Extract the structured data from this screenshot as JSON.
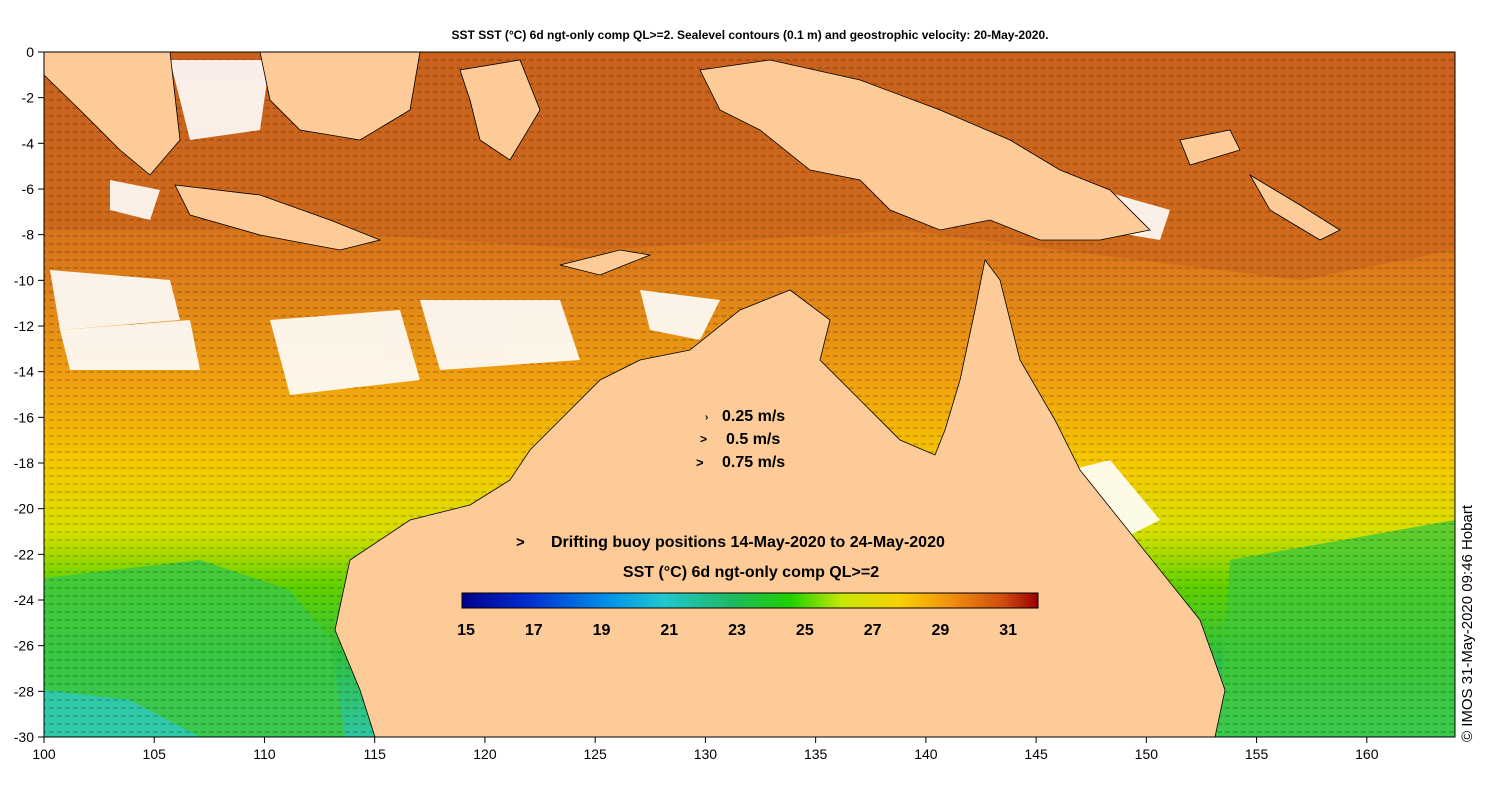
{
  "title": "SST SST (°C) 6d ngt-only comp QL>=2. Sealevel contours (0.1 m) and geostrophic velocity: 20-May-2020.",
  "map": {
    "lon_range": [
      100,
      164
    ],
    "lat_range": [
      -30,
      0
    ],
    "x_ticks": [
      100,
      105,
      110,
      115,
      120,
      125,
      130,
      135,
      140,
      145,
      150,
      155,
      160
    ],
    "y_ticks": [
      0,
      -2,
      -4,
      -6,
      -8,
      -10,
      -12,
      -14,
      -16,
      -18,
      -20,
      -22,
      -24,
      -26,
      -28,
      -30
    ],
    "land_color": "#fccb98",
    "cloud_color": "#ffffff"
  },
  "velocity_legend": [
    {
      "label": "0.25 m/s"
    },
    {
      "label": "0.5 m/s"
    },
    {
      "label": "0.75 m/s"
    }
  ],
  "buoy_legend": {
    "symbol": ">",
    "symbol_color": "#ff00ff",
    "label": "Drifting buoy positions 14-May-2020 to 24-May-2020"
  },
  "colorbar": {
    "label": "SST (°C) 6d ngt-only comp QL>=2",
    "min": 15,
    "max": 32,
    "tick_labels": [
      "15",
      "17",
      "19",
      "21",
      "23",
      "25",
      "27",
      "29",
      "31"
    ]
  },
  "copyright": "© IMOS 31-May-2020 09:46 Hobart"
}
